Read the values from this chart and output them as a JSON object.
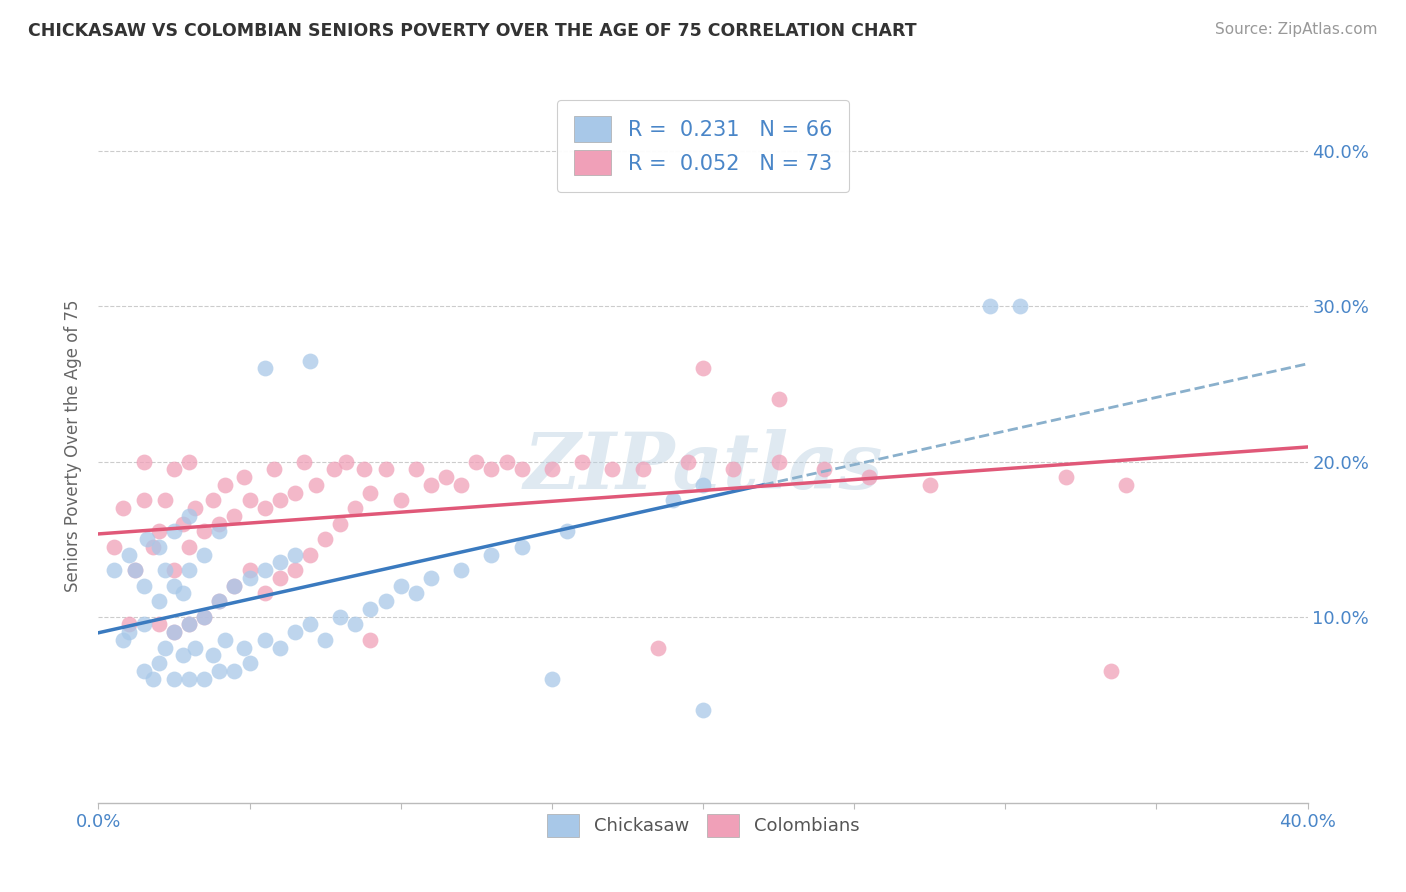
{
  "title": "CHICKASAW VS COLOMBIAN SENIORS POVERTY OVER THE AGE OF 75 CORRELATION CHART",
  "source": "Source: ZipAtlas.com",
  "ylabel": "Seniors Poverty Over the Age of 75",
  "chickasaw_R": 0.231,
  "chickasaw_N": 66,
  "colombian_R": 0.052,
  "colombian_N": 73,
  "chickasaw_color": "#a8c8e8",
  "colombian_color": "#f0a0b8",
  "chickasaw_line_color": "#3a7abf",
  "colombian_line_color": "#e05878",
  "dashed_line_color": "#8ab0cc",
  "watermark": "ZIPatlas",
  "xlim": [
    0.0,
    0.4
  ],
  "ylim": [
    -0.02,
    0.44
  ],
  "chickasaw_x": [
    0.005,
    0.008,
    0.01,
    0.01,
    0.012,
    0.015,
    0.015,
    0.015,
    0.016,
    0.018,
    0.02,
    0.02,
    0.02,
    0.022,
    0.022,
    0.025,
    0.025,
    0.025,
    0.025,
    0.028,
    0.028,
    0.03,
    0.03,
    0.03,
    0.03,
    0.032,
    0.035,
    0.035,
    0.035,
    0.038,
    0.04,
    0.04,
    0.04,
    0.042,
    0.045,
    0.045,
    0.048,
    0.05,
    0.05,
    0.055,
    0.055,
    0.06,
    0.06,
    0.065,
    0.065,
    0.07,
    0.075,
    0.08,
    0.085,
    0.09,
    0.095,
    0.1,
    0.105,
    0.11,
    0.12,
    0.13,
    0.14,
    0.155,
    0.19,
    0.2,
    0.295,
    0.305,
    0.07,
    0.055,
    0.15,
    0.2
  ],
  "chickasaw_y": [
    0.13,
    0.085,
    0.09,
    0.14,
    0.13,
    0.065,
    0.095,
    0.12,
    0.15,
    0.06,
    0.07,
    0.11,
    0.145,
    0.08,
    0.13,
    0.06,
    0.09,
    0.12,
    0.155,
    0.075,
    0.115,
    0.06,
    0.095,
    0.13,
    0.165,
    0.08,
    0.06,
    0.1,
    0.14,
    0.075,
    0.065,
    0.11,
    0.155,
    0.085,
    0.065,
    0.12,
    0.08,
    0.07,
    0.125,
    0.085,
    0.13,
    0.08,
    0.135,
    0.09,
    0.14,
    0.095,
    0.085,
    0.1,
    0.095,
    0.105,
    0.11,
    0.12,
    0.115,
    0.125,
    0.13,
    0.14,
    0.145,
    0.155,
    0.175,
    0.185,
    0.3,
    0.3,
    0.265,
    0.26,
    0.06,
    0.04
  ],
  "colombian_x": [
    0.005,
    0.008,
    0.01,
    0.012,
    0.015,
    0.015,
    0.018,
    0.02,
    0.02,
    0.022,
    0.025,
    0.025,
    0.025,
    0.028,
    0.03,
    0.03,
    0.03,
    0.032,
    0.035,
    0.035,
    0.038,
    0.04,
    0.04,
    0.042,
    0.045,
    0.045,
    0.048,
    0.05,
    0.05,
    0.055,
    0.055,
    0.058,
    0.06,
    0.06,
    0.065,
    0.065,
    0.068,
    0.07,
    0.072,
    0.075,
    0.078,
    0.08,
    0.082,
    0.085,
    0.088,
    0.09,
    0.095,
    0.1,
    0.105,
    0.11,
    0.115,
    0.12,
    0.125,
    0.13,
    0.135,
    0.14,
    0.15,
    0.16,
    0.17,
    0.18,
    0.195,
    0.21,
    0.225,
    0.24,
    0.255,
    0.275,
    0.32,
    0.34,
    0.2,
    0.225,
    0.09,
    0.185,
    0.335
  ],
  "colombian_y": [
    0.145,
    0.17,
    0.095,
    0.13,
    0.175,
    0.2,
    0.145,
    0.095,
    0.155,
    0.175,
    0.09,
    0.13,
    0.195,
    0.16,
    0.095,
    0.145,
    0.2,
    0.17,
    0.1,
    0.155,
    0.175,
    0.11,
    0.16,
    0.185,
    0.12,
    0.165,
    0.19,
    0.13,
    0.175,
    0.115,
    0.17,
    0.195,
    0.125,
    0.175,
    0.13,
    0.18,
    0.2,
    0.14,
    0.185,
    0.15,
    0.195,
    0.16,
    0.2,
    0.17,
    0.195,
    0.18,
    0.195,
    0.175,
    0.195,
    0.185,
    0.19,
    0.185,
    0.2,
    0.195,
    0.2,
    0.195,
    0.195,
    0.2,
    0.195,
    0.195,
    0.2,
    0.195,
    0.2,
    0.195,
    0.19,
    0.185,
    0.19,
    0.185,
    0.26,
    0.24,
    0.085,
    0.08,
    0.065
  ]
}
